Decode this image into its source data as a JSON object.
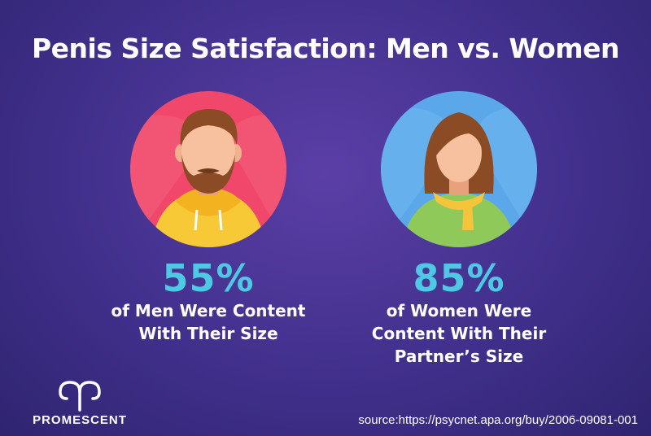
{
  "title": "Penis Size Satisfaction: Men vs. Women",
  "men": {
    "percent": "55%",
    "description": "of Men Were Content\nWith Their Size"
  },
  "women": {
    "percent": "85%",
    "description": "of Women Were\nContent With Their\nPartner’s Size"
  },
  "brand": {
    "name": "PROMESCENT"
  },
  "source": "source:https://psycnet.apa.org/buy/2006-09081-001",
  "colors": {
    "accent": "#4ec9e4",
    "men_circle": "#f0476a",
    "women_circle": "#5aa8ea"
  }
}
